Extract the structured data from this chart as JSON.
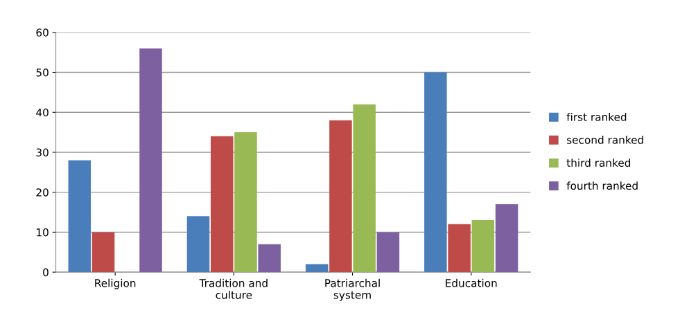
{
  "chart_data": {
    "type": "bar",
    "categories": [
      "Religion",
      "Tradition and\nculture",
      "Patriarchal\nsystem",
      "Education"
    ],
    "series": [
      {
        "name": "first ranked",
        "color": "#4a7ebb",
        "values": [
          28,
          14,
          2,
          50
        ]
      },
      {
        "name": "second ranked",
        "color": "#be4b48",
        "values": [
          10,
          34,
          38,
          12
        ]
      },
      {
        "name": "third ranked",
        "color": "#98b954",
        "values": [
          0,
          35,
          42,
          13
        ]
      },
      {
        "name": "fourth ranked",
        "color": "#7d60a0",
        "values": [
          56,
          7,
          10,
          17
        ]
      }
    ],
    "ylim": [
      0,
      60
    ],
    "yticks": [
      0,
      10,
      20,
      30,
      40,
      50,
      60
    ],
    "grid": "y",
    "legend": "right"
  }
}
